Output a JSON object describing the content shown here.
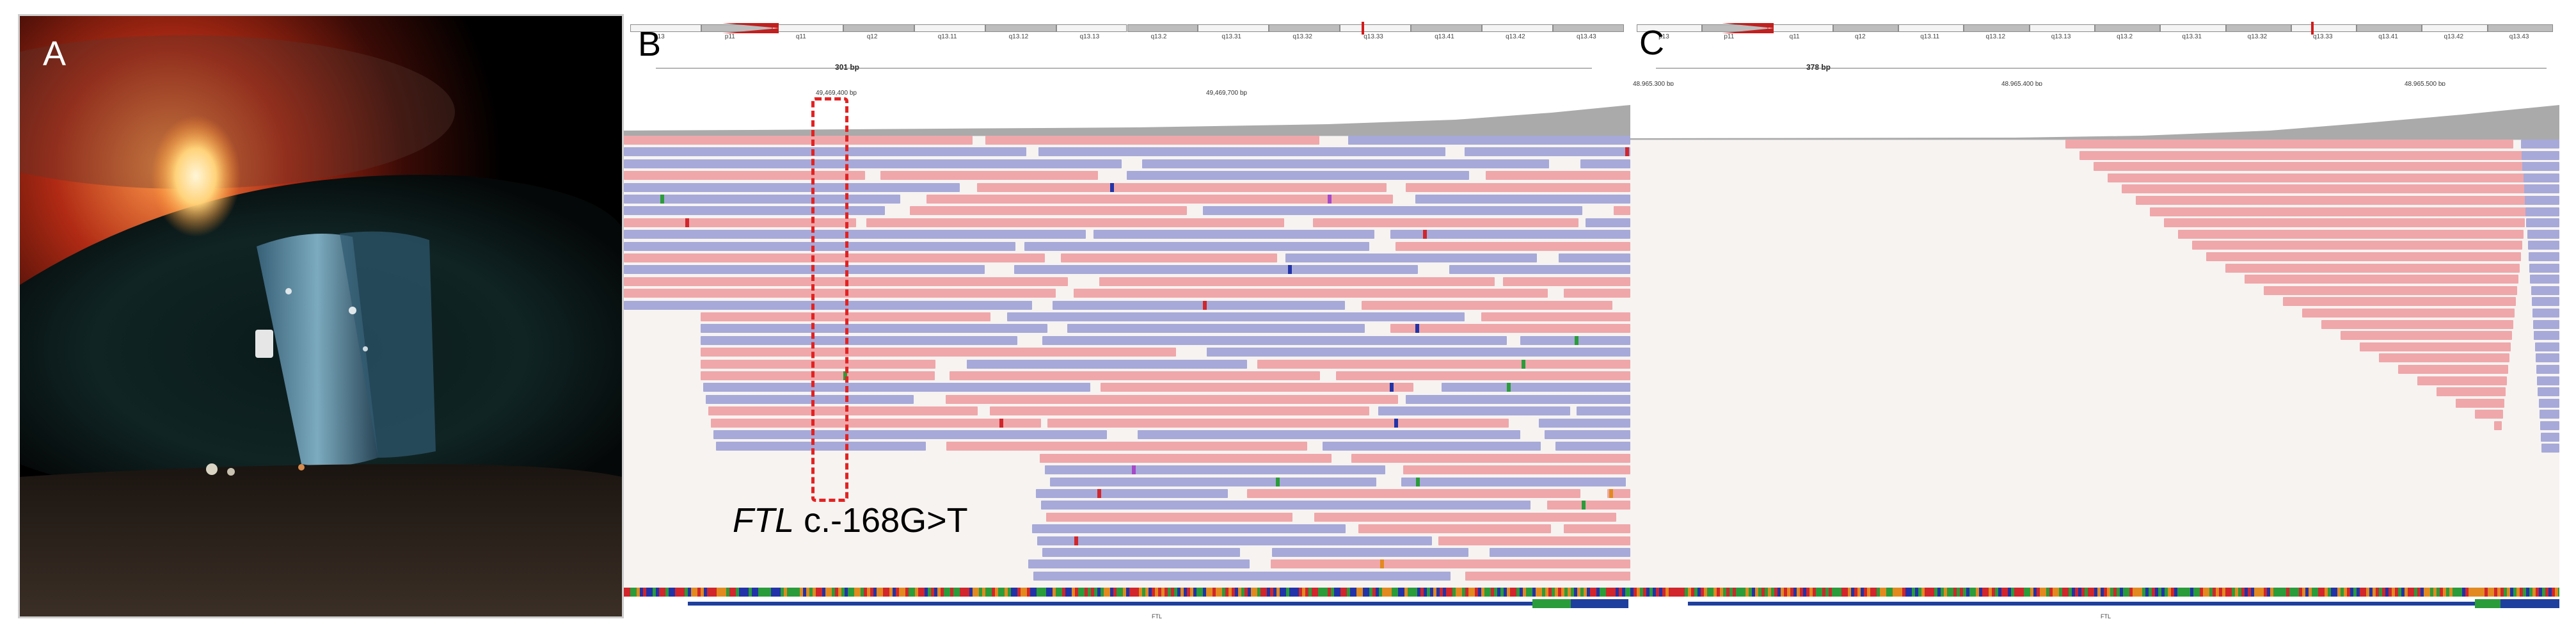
{
  "panels": [
    {
      "id": "A",
      "label": "A",
      "content": "slit-lamp photograph of the eye"
    },
    {
      "id": "B",
      "label": "B",
      "span": "301 bp",
      "coords": [
        "49,469,400 bp",
        "49,469,700 bp"
      ],
      "gene": "FTL"
    },
    {
      "id": "C",
      "label": "C",
      "span": "378 bp",
      "coords": [
        "48,965,300 bp",
        "48,965,400 bp",
        "48,965,500 bp"
      ],
      "gene": "FTL"
    }
  ],
  "ideogram_bands": [
    "p13",
    "p11",
    "q11",
    "q12",
    "q13.11",
    "q13.12",
    "q13.13",
    "q13.2",
    "q13.31",
    "q13.32",
    "q13.33",
    "q13.41",
    "q13.42",
    "q13.43"
  ],
  "variant": {
    "gene": "FTL",
    "change": " c.-168G>T"
  },
  "colors": {
    "forward_read": "#efa7aa",
    "reverse_read": "#a7a9d8",
    "highlight": "#e32222",
    "gene_track": "#1f3f9e",
    "coverage": "#aaaaaa"
  }
}
